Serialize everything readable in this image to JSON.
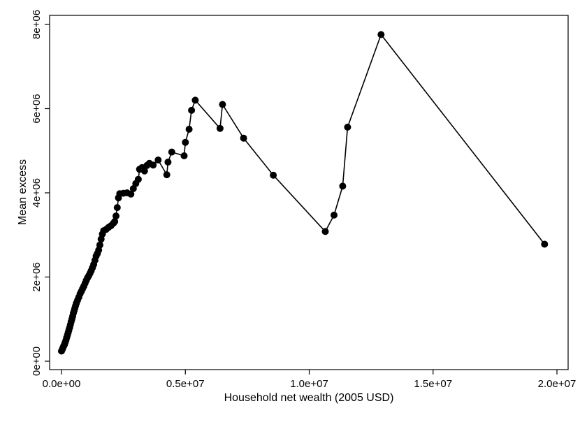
{
  "chart_data": {
    "type": "line",
    "title": "",
    "xlabel": "Household net wealth (2005 USD)",
    "ylabel": "Mean excess",
    "xlim": [
      0,
      20000000
    ],
    "ylim": [
      0,
      8000000
    ],
    "x_ticks": [
      {
        "value": 0,
        "label": "0.0e+00"
      },
      {
        "value": 5000000,
        "label": "0.5e+07"
      },
      {
        "value": 10000000,
        "label": "1.0e+07"
      },
      {
        "value": 15000000,
        "label": "1.5e+07"
      },
      {
        "value": 20000000,
        "label": "2.0e+07"
      }
    ],
    "y_ticks": [
      {
        "value": 0,
        "label": "0e+00"
      },
      {
        "value": 2000000,
        "label": "2e+06"
      },
      {
        "value": 4000000,
        "label": "4e+06"
      },
      {
        "value": 6000000,
        "label": "6e+06"
      },
      {
        "value": 8000000,
        "label": "8e+06"
      }
    ],
    "grid": false,
    "legend": "none",
    "colors": {
      "line": "#000000",
      "marker": "#000000",
      "background": "#ffffff"
    },
    "series": [
      {
        "values": [
          [
            0,
            240000
          ],
          [
            30000,
            280000
          ],
          [
            60000,
            320000
          ],
          [
            90000,
            360000
          ],
          [
            120000,
            400000
          ],
          [
            150000,
            450000
          ],
          [
            180000,
            500000
          ],
          [
            210000,
            560000
          ],
          [
            240000,
            620000
          ],
          [
            270000,
            680000
          ],
          [
            300000,
            740000
          ],
          [
            330000,
            800000
          ],
          [
            360000,
            870000
          ],
          [
            390000,
            940000
          ],
          [
            420000,
            1000000
          ],
          [
            450000,
            1070000
          ],
          [
            480000,
            1140000
          ],
          [
            510000,
            1200000
          ],
          [
            540000,
            1260000
          ],
          [
            570000,
            1320000
          ],
          [
            600000,
            1380000
          ],
          [
            650000,
            1450000
          ],
          [
            700000,
            1520000
          ],
          [
            750000,
            1600000
          ],
          [
            800000,
            1660000
          ],
          [
            850000,
            1720000
          ],
          [
            900000,
            1780000
          ],
          [
            950000,
            1850000
          ],
          [
            1000000,
            1920000
          ],
          [
            1050000,
            1980000
          ],
          [
            1100000,
            2030000
          ],
          [
            1150000,
            2090000
          ],
          [
            1200000,
            2150000
          ],
          [
            1250000,
            2220000
          ],
          [
            1300000,
            2300000
          ],
          [
            1350000,
            2400000
          ],
          [
            1400000,
            2500000
          ],
          [
            1450000,
            2560000
          ],
          [
            1500000,
            2640000
          ],
          [
            1550000,
            2760000
          ],
          [
            1600000,
            2900000
          ],
          [
            1650000,
            3020000
          ],
          [
            1700000,
            3100000
          ],
          [
            1800000,
            3130000
          ],
          [
            1900000,
            3180000
          ],
          [
            2000000,
            3220000
          ],
          [
            2100000,
            3280000
          ],
          [
            2150000,
            3320000
          ],
          [
            2200000,
            3450000
          ],
          [
            2250000,
            3650000
          ],
          [
            2300000,
            3880000
          ],
          [
            2350000,
            3980000
          ],
          [
            2500000,
            3990000
          ],
          [
            2650000,
            4000000
          ],
          [
            2800000,
            3970000
          ],
          [
            2900000,
            4100000
          ],
          [
            3000000,
            4220000
          ],
          [
            3100000,
            4320000
          ],
          [
            3150000,
            4560000
          ],
          [
            3250000,
            4600000
          ],
          [
            3350000,
            4520000
          ],
          [
            3450000,
            4650000
          ],
          [
            3550000,
            4700000
          ],
          [
            3700000,
            4660000
          ],
          [
            3900000,
            4780000
          ],
          [
            4250000,
            4430000
          ],
          [
            4300000,
            4730000
          ],
          [
            4450000,
            4970000
          ],
          [
            4950000,
            4880000
          ],
          [
            5000000,
            5200000
          ],
          [
            5150000,
            5510000
          ],
          [
            5250000,
            5960000
          ],
          [
            5400000,
            6200000
          ],
          [
            6400000,
            5530000
          ],
          [
            6500000,
            6100000
          ],
          [
            7350000,
            5300000
          ],
          [
            8550000,
            4420000
          ],
          [
            10650000,
            3080000
          ],
          [
            11000000,
            3470000
          ],
          [
            11350000,
            4160000
          ],
          [
            11550000,
            5560000
          ],
          [
            12900000,
            7760000
          ],
          [
            19500000,
            2780000
          ]
        ]
      }
    ]
  }
}
